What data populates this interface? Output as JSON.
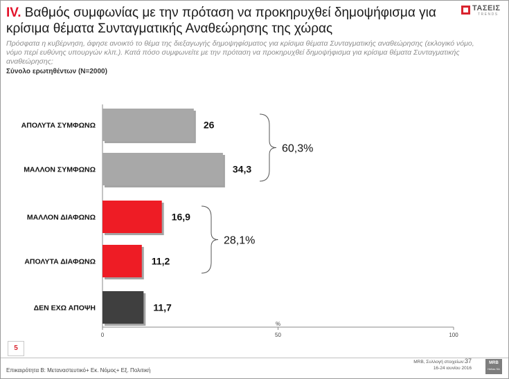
{
  "header": {
    "title_number": "IV.",
    "title_text": "Βαθμός συμφωνίας με την πρόταση να προκηρυχθεί δημοψήφισμα για κρίσιμα θέματα Συνταγματικής Αναθεώρησης της χώρας",
    "subtitle": "Πρόσφατα η κυβέρνηση, άφησε ανοικτό το θέμα της διεξαγωγής δημοψηφίσματος για κρίσιμα θέματα Συνταγματικής αναθεώρησης (εκλογικό νόμο, νόμο περί ευθύνης υπουργών κλπ.). Κατά πόσο συμφωνείτε με την πρόταση να προκηρυχθεί δημοψήφισμα για κρίσιμα θέματα Συνταγματικής αναθεώρησης;",
    "base": "Σύνολο ερωτηθέντων (N=2000)"
  },
  "logo": {
    "name": "ΤΑΣΕΙΣ",
    "sub": "TRENDS"
  },
  "chart_data": {
    "type": "bar",
    "orientation": "horizontal",
    "categories": [
      "ΑΠΟΛΥΤΑ ΣΥΜΦΩΝΩ",
      "ΜΑΛΛΟΝ ΣΥΜΦΩΝΩ",
      "ΜΑΛΛΟΝ ΔΙΑΦΩΝΩ",
      "ΑΠΟΛΥΤΑ ΔΙΑΦΩΝΩ",
      "ΔΕΝ ΕΧΩ ΑΠΟΨΗ"
    ],
    "values": [
      26,
      34.3,
      16.9,
      11.2,
      11.7
    ],
    "value_labels": [
      "26",
      "34,3",
      "16,9",
      "11,2",
      "11,7"
    ],
    "colors": [
      "#a8a8a8",
      "#a8a8a8",
      "#ee1c25",
      "#ee1c25",
      "#3f3f3f"
    ],
    "xlim": [
      0,
      100
    ],
    "ticks": [
      0,
      50,
      100
    ],
    "tick_labels": [
      "0",
      "50",
      "100"
    ],
    "unit_label": "%",
    "groups": [
      {
        "label": "60,3%",
        "from": 0,
        "to": 1
      },
      {
        "label": "28,1%",
        "from": 2,
        "to": 3
      }
    ]
  },
  "footer": {
    "page_badge": "5",
    "left": "Επικαιρότητα Β: Μεταναστευτικό+ Εκ. Νόμος+ Εξ. Πολιτική",
    "source": "MRB, Συλλογή στοιχείων:",
    "page": "37",
    "dates": "16-24 ιουνίου 2016",
    "mrb": "MRB",
    "mrb_sub": "Hellas SA"
  }
}
